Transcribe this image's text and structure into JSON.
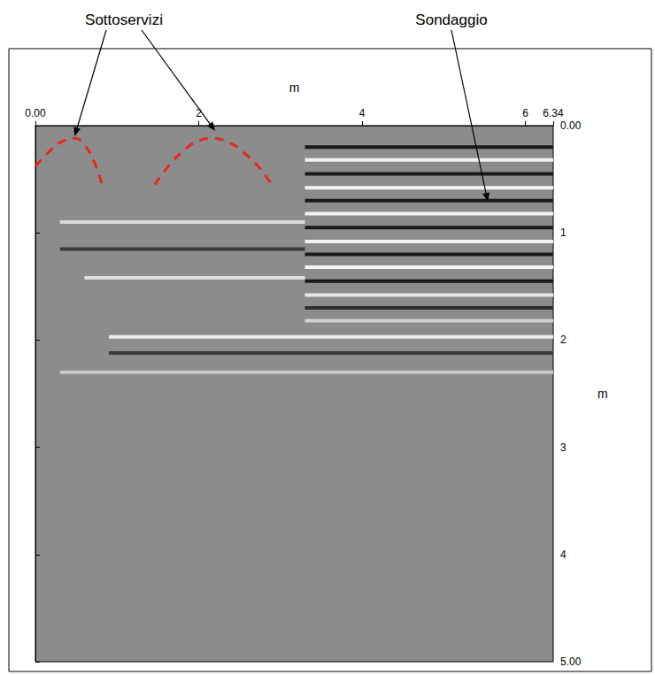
{
  "chart_data": {
    "type": "radargram",
    "x_label": "m",
    "y_label": "m",
    "xlim": [
      0,
      6.34
    ],
    "xticks": [
      {
        "value": 0,
        "label": "0.00"
      },
      2,
      4,
      6,
      {
        "value": 6.34,
        "label": "6.34"
      }
    ],
    "ylim": [
      0,
      5
    ],
    "yticks": [
      {
        "value": 0,
        "label": "0.00"
      },
      1,
      2,
      3,
      4,
      {
        "value": 5,
        "label": "5.00"
      }
    ],
    "hyperbolas": {
      "color": "#e8281e",
      "line_style": "dashed",
      "curves": [
        {
          "x": [
            0,
            0.2,
            0.35,
            0.48,
            0.6,
            0.72,
            0.82
          ],
          "y": [
            0.38,
            0.22,
            0.14,
            0.12,
            0.18,
            0.34,
            0.56
          ]
        },
        {
          "x": [
            1.46,
            1.65,
            1.85,
            2.0,
            2.16,
            2.35,
            2.55,
            2.75,
            2.9
          ],
          "y": [
            0.55,
            0.36,
            0.21,
            0.14,
            0.12,
            0.15,
            0.25,
            0.4,
            0.56
          ]
        }
      ]
    },
    "reflectors": [
      {
        "x": [
          3.3,
          6.34
        ],
        "y": 0.2,
        "color": "#1a1a1a"
      },
      {
        "x": [
          3.3,
          6.34
        ],
        "y": 0.32,
        "color": "#f2f2f2"
      },
      {
        "x": [
          3.3,
          6.34
        ],
        "y": 0.45,
        "color": "#1a1a1a"
      },
      {
        "x": [
          3.3,
          6.34
        ],
        "y": 0.58,
        "color": "#f2f2f2"
      },
      {
        "x": [
          3.3,
          6.34
        ],
        "y": 0.7,
        "color": "#1a1a1a"
      },
      {
        "x": [
          3.3,
          6.34
        ],
        "y": 0.82,
        "color": "#f2f2f2"
      },
      {
        "x": [
          3.3,
          6.34
        ],
        "y": 0.95,
        "color": "#1a1a1a"
      },
      {
        "x": [
          3.3,
          6.34
        ],
        "y": 1.08,
        "color": "#f2f2f2"
      },
      {
        "x": [
          3.3,
          6.34
        ],
        "y": 1.2,
        "color": "#1a1a1a"
      },
      {
        "x": [
          3.3,
          6.34
        ],
        "y": 1.32,
        "color": "#f2f2f2"
      },
      {
        "x": [
          3.3,
          6.34
        ],
        "y": 1.45,
        "color": "#1a1a1a"
      },
      {
        "x": [
          3.3,
          6.34
        ],
        "y": 1.58,
        "color": "#e6e6e6"
      },
      {
        "x": [
          3.3,
          6.34
        ],
        "y": 1.7,
        "color": "#2e2e2e"
      },
      {
        "x": [
          3.3,
          6.34
        ],
        "y": 1.82,
        "color": "#d0d0d0"
      },
      {
        "x": [
          0.3,
          3.3
        ],
        "y": 0.9,
        "color": "#d8d8d8"
      },
      {
        "x": [
          0.3,
          3.3
        ],
        "y": 1.15,
        "color": "#3a3a3a"
      },
      {
        "x": [
          0.6,
          3.3
        ],
        "y": 1.42,
        "color": "#e0e0e0"
      },
      {
        "x": [
          0.9,
          6.34
        ],
        "y": 1.97,
        "color": "#ececec"
      },
      {
        "x": [
          0.9,
          6.34
        ],
        "y": 2.12,
        "color": "#3a3a3a"
      },
      {
        "x": [
          0.3,
          6.34
        ],
        "y": 2.3,
        "color": "#c8c8c8"
      }
    ],
    "annotations": [
      {
        "text": "Sottoservizi",
        "targets": [
          [
            0.48,
            0.1
          ],
          [
            2.2,
            0.05
          ]
        ]
      },
      {
        "text": "Sondaggio",
        "targets": [
          [
            5.54,
            0.71
          ]
        ]
      }
    ]
  }
}
